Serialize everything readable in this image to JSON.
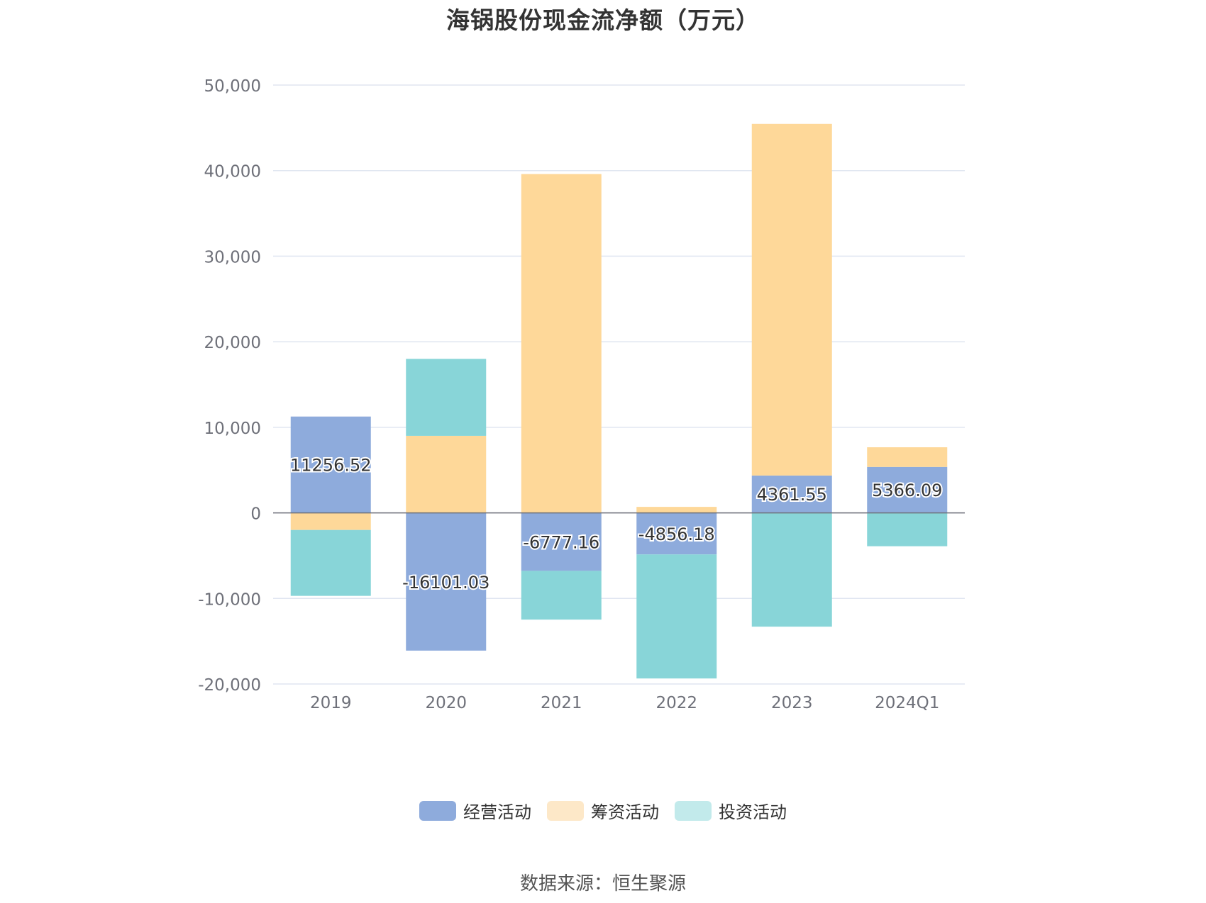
{
  "chart_data": {
    "type": "bar",
    "stacked": true,
    "title": "海锅股份现金流净额（万元）",
    "categories": [
      "2019",
      "2020",
      "2021",
      "2022",
      "2023",
      "2024Q1"
    ],
    "series": [
      {
        "name": "经营活动",
        "color": "#8eabdc",
        "legend_color": "#8eabdc",
        "values": [
          11256.52,
          -16101.03,
          -6777.16,
          -4856.18,
          4361.55,
          5366.09
        ]
      },
      {
        "name": "筹资活动",
        "color": "#fed899",
        "legend_color": "#fde8c8",
        "values": [
          -2000,
          9000,
          39600,
          700,
          41100,
          2300
        ]
      },
      {
        "name": "投资活动",
        "color": "#88d5d8",
        "legend_color": "#c2eaeb",
        "values": [
          -7700,
          9000,
          -5700,
          -14500,
          -13300,
          -3900
        ]
      }
    ],
    "data_labels": [
      "11256.52",
      "-16101.03",
      "-6777.16",
      "-4856.18",
      "4361.55",
      "5366.09"
    ],
    "y_ticks": [
      50000,
      40000,
      30000,
      20000,
      10000,
      0,
      -10000,
      -20000
    ],
    "y_tick_labels": [
      "50,000",
      "40,000",
      "30,000",
      "20,000",
      "10,000",
      "0",
      "-10,000",
      "-20,000"
    ],
    "ylim": [
      -20000,
      50000
    ],
    "grid": true,
    "legend_position": "bottom"
  },
  "footer": {
    "source": "数据来源：恒生聚源"
  }
}
